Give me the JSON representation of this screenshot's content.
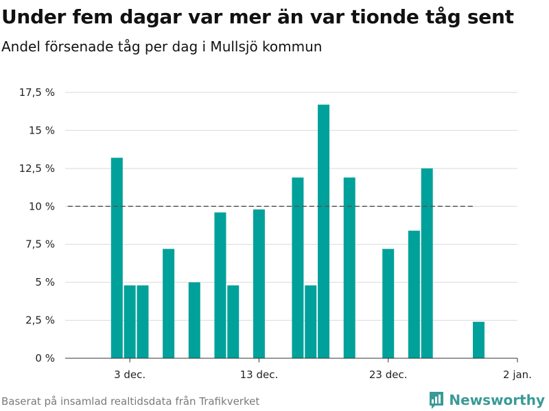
{
  "header": {
    "title": "Under fem dagar var mer än var tionde tåg sent",
    "subtitle": "Andel försenade tåg per dag i Mullsjö kommun"
  },
  "footer": {
    "source": "Baserat på insamlad realtidsdata från Trafikverket",
    "brand": "Newsworthy"
  },
  "colors": {
    "bar": "#00a19a",
    "grid": "#d9d9d9",
    "reference_line": "#555555",
    "brand": "#3a9a96"
  },
  "chart_data": {
    "type": "bar",
    "title": "Under fem dagar var mer än var tionde tåg sent",
    "subtitle": "Andel försenade tåg per dag i Mullsjö kommun",
    "xlabel": "",
    "ylabel": "",
    "unit": "%",
    "x_range": [
      "2023-11-28",
      "2024-01-02"
    ],
    "ylim": [
      0,
      17.5
    ],
    "y_ticks": [
      0,
      2.5,
      5,
      7.5,
      10,
      12.5,
      15,
      17.5
    ],
    "y_tick_labels": [
      "0 %",
      "2,5 %",
      "5 %",
      "7,5 %",
      "10 %",
      "12,5 %",
      "15 %",
      "17,5 %"
    ],
    "x_ticks": [
      "2023-12-03",
      "2023-12-13",
      "2023-12-23",
      "2024-01-02"
    ],
    "x_tick_labels": [
      "3 dec.",
      "13 dec.",
      "23 dec.",
      "2 jan."
    ],
    "reference_line": {
      "value": 10,
      "style": "dashed",
      "from": "2023-11-29",
      "to": "2023-12-29"
    },
    "grid": true,
    "legend": "none",
    "series": [
      {
        "points": [
          {
            "date": "2023-12-02",
            "value": 13.2
          },
          {
            "date": "2023-12-03",
            "value": 4.8
          },
          {
            "date": "2023-12-04",
            "value": 4.8
          },
          {
            "date": "2023-12-06",
            "value": 7.2
          },
          {
            "date": "2023-12-08",
            "value": 5.0
          },
          {
            "date": "2023-12-10",
            "value": 9.6
          },
          {
            "date": "2023-12-11",
            "value": 4.8
          },
          {
            "date": "2023-12-13",
            "value": 9.8
          },
          {
            "date": "2023-12-16",
            "value": 11.9
          },
          {
            "date": "2023-12-17",
            "value": 4.8
          },
          {
            "date": "2023-12-18",
            "value": 16.7
          },
          {
            "date": "2023-12-20",
            "value": 11.9
          },
          {
            "date": "2023-12-23",
            "value": 7.2
          },
          {
            "date": "2023-12-25",
            "value": 8.4
          },
          {
            "date": "2023-12-26",
            "value": 12.5
          },
          {
            "date": "2023-12-30",
            "value": 2.4
          }
        ]
      }
    ]
  }
}
